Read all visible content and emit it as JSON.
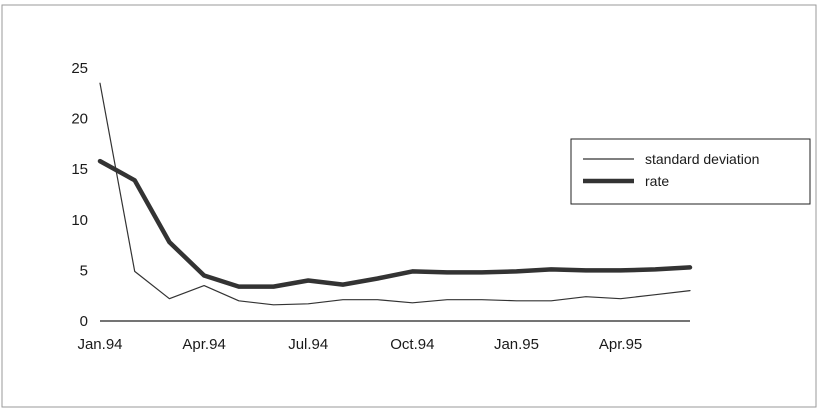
{
  "chart_data": {
    "type": "line",
    "title": "",
    "xlabel": "",
    "ylabel": "",
    "ylim": [
      0,
      25
    ],
    "yticks": [
      0,
      5,
      10,
      15,
      20,
      25
    ],
    "x": [
      "Jan.94",
      "Feb.94",
      "Mar.94",
      "Apr.94",
      "May.94",
      "Jun.94",
      "Jul.94",
      "Aug.94",
      "Sep.94",
      "Oct.94",
      "Nov.94",
      "Dec.94",
      "Jan.95",
      "Feb.95",
      "Mar.95",
      "Apr.95",
      "May.95",
      "Jun.95"
    ],
    "xtick_labels": [
      "Jan.94",
      "Apr.94",
      "Jul.94",
      "Oct.94",
      "Jan.95",
      "Apr.95"
    ],
    "grid": false,
    "legend_position": "right",
    "series": [
      {
        "name": "standard deviation",
        "color": "#333333",
        "line_style": "thin",
        "values": [
          23.5,
          4.9,
          2.2,
          3.5,
          2.0,
          1.6,
          1.7,
          2.1,
          2.1,
          1.8,
          2.1,
          2.1,
          2.0,
          2.0,
          2.4,
          2.2,
          2.6,
          3.0
        ]
      },
      {
        "name": "rate",
        "color": "#333333",
        "line_style": "thick",
        "values": [
          15.8,
          13.9,
          7.8,
          4.5,
          3.4,
          3.4,
          4.0,
          3.6,
          4.2,
          4.9,
          4.8,
          4.8,
          4.9,
          5.1,
          5.0,
          5.0,
          5.1,
          5.3
        ]
      }
    ]
  }
}
